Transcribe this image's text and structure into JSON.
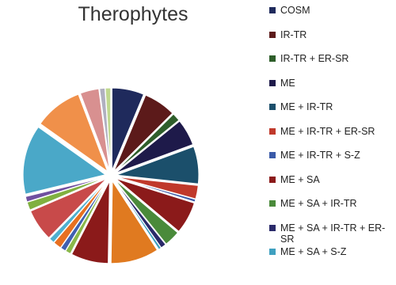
{
  "chart_data": {
    "type": "pie",
    "title": "Therophytes",
    "categories": [
      "COSM",
      "IR-TR",
      "IR-TR + ER-SR",
      "ME",
      "ME + IR-TR",
      "ME + IR-TR + ER-SR",
      "ME + IR-TR + S-Z",
      "ME + SA",
      "ME + SA + IR-TR",
      "ME + SA + IR-TR + ER-SR",
      "ME + SA + S-Z",
      null,
      null,
      null,
      null,
      null,
      null,
      null,
      null,
      null,
      null,
      null,
      null,
      null,
      null
    ],
    "values": [
      6,
      6,
      1.5,
      5,
      7,
      2.5,
      0.5,
      6,
      3,
      1,
      0.5,
      9,
      7,
      1,
      1,
      1.5,
      1,
      6,
      1.5,
      1,
      13,
      9,
      3.5,
      1,
      1
    ],
    "colors": [
      "#1f2a5c",
      "#5c1a1a",
      "#2e5e2a",
      "#1e1a4a",
      "#1b4f6b",
      "#c0392b",
      "#3a5aa8",
      "#8b1a1a",
      "#4a8a3a",
      "#2a2a6a",
      "#3fa0c0",
      "#e07a20",
      "#8b1a1a",
      "#8ab84a",
      "#4060b0",
      "#e87020",
      "#4fb0d0",
      "#c84a4a",
      "#80b040",
      "#7050a0",
      "#4aa8c8",
      "#f0904a",
      "#d89090",
      "#b0b0c0",
      "#c0d890"
    ]
  }
}
